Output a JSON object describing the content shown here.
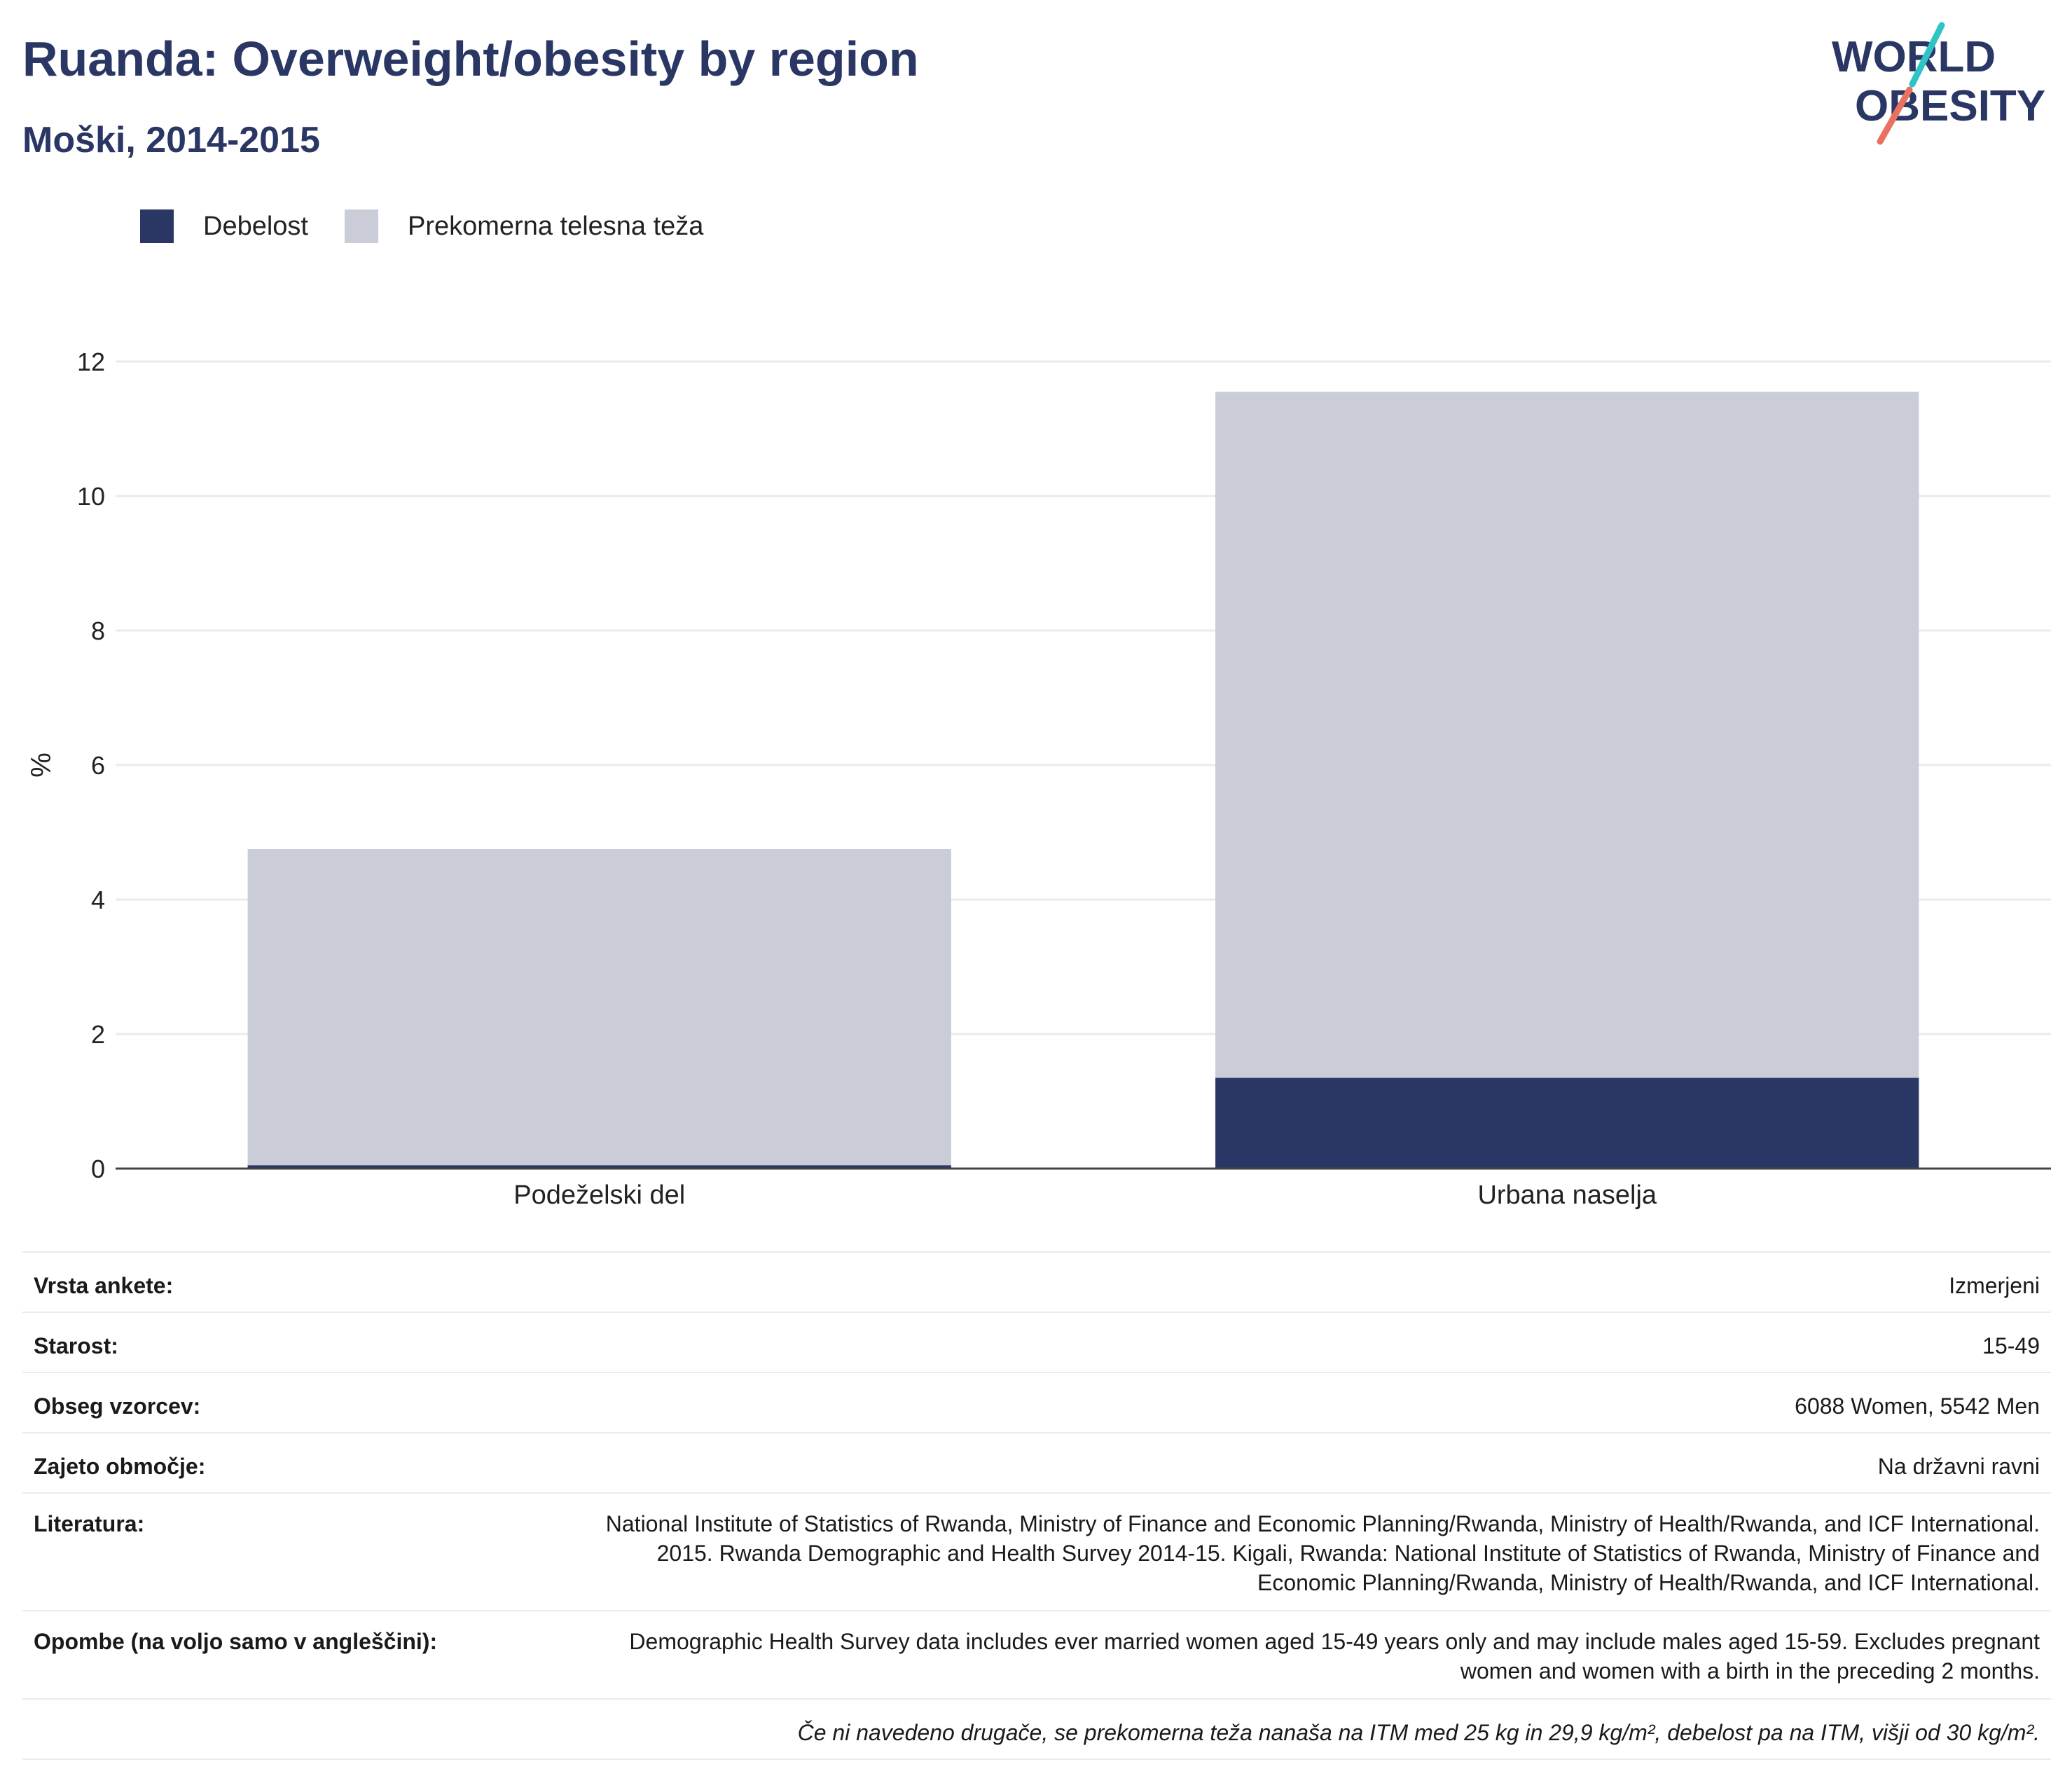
{
  "header": {
    "title": "Ruanda: Overweight/obesity by region",
    "subtitle": "Moški, 2014-2015"
  },
  "logo": {
    "line1": "WORLD",
    "line2": "OBESITY"
  },
  "legend": [
    {
      "label": "Debelost",
      "color": "#2a3663"
    },
    {
      "label": "Prekomerna telesna teža",
      "color": "#cacdd8"
    }
  ],
  "chart_data": {
    "type": "bar",
    "stacked": true,
    "categories": [
      "Podeželski del",
      "Urbana naselja"
    ],
    "series": [
      {
        "name": "Debelost",
        "values": [
          0.05,
          1.35
        ],
        "color": "#2a3663"
      },
      {
        "name": "Prekomerna telesna teža",
        "values": [
          4.7,
          10.2
        ],
        "color": "#cacdd8"
      }
    ],
    "ylabel": "%",
    "ylim": [
      0,
      12
    ],
    "yticks": [
      0,
      2,
      4,
      6,
      8,
      10,
      12
    ],
    "grid": true,
    "legend_position": "top-left"
  },
  "info": {
    "survey_type": {
      "label": "Vrsta ankete:",
      "value": "Izmerjeni"
    },
    "age": {
      "label": "Starost:",
      "value": "15-49"
    },
    "sample_size": {
      "label": "Obseg vzorcev:",
      "value": "6088 Women, 5542 Men"
    },
    "area_covered": {
      "label": "Zajeto območje:",
      "value": "Na državni ravni"
    },
    "references": {
      "label": "Literatura:",
      "value": "National Institute of Statistics of Rwanda, Ministry of Finance and Economic Planning/Rwanda, Ministry of Health/Rwanda, and ICF International. 2015. Rwanda Demographic and Health Survey 2014-15. Kigali, Rwanda: National Institute of Statistics of Rwanda, Ministry of Finance and Economic Planning/Rwanda, Ministry of Health/Rwanda, and ICF International."
    },
    "notes": {
      "label": "Opombe (na voljo samo v angleščini):",
      "value": "Demographic Health Survey data includes ever married women aged 15-49 years only and may include males aged 15-59. Excludes pregnant women and women with a birth in the preceding 2 months."
    },
    "footnote": "Če ni navedeno drugače, se prekomerna teža nanaša na ITM med 25 kg in 29,9 kg/m², debelost pa na ITM, višji od 30 kg/m²."
  }
}
